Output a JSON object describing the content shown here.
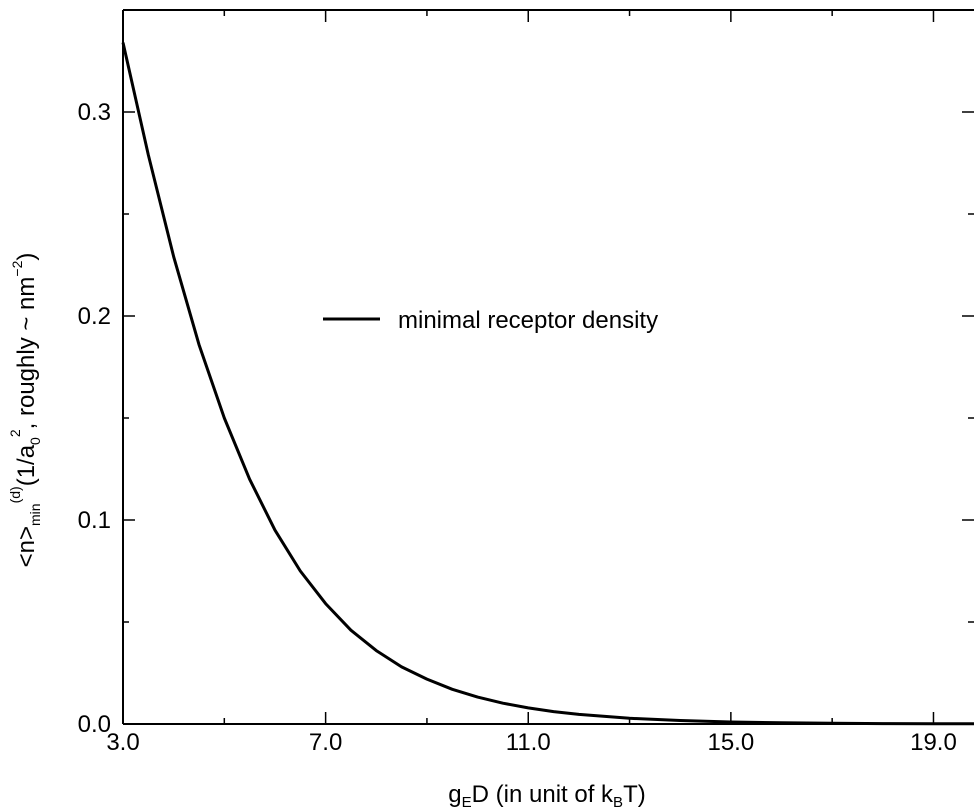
{
  "chart_data": {
    "type": "line",
    "xlabel": {
      "base": "g",
      "sub1": "E",
      "mid": "D (in unit of k",
      "sub2": "B",
      "tail": "T)"
    },
    "ylabel": {
      "p1": "<n>",
      "sub_min": "min",
      "sup_d": "(d)",
      "p2": "(1/a",
      "sub_0": "0",
      "sup_2": "2",
      "p3": ", roughly ~ nm",
      "sup_neg2": "−2",
      "p4": ")"
    },
    "xlim": [
      3.0,
      19.8
    ],
    "ylim": [
      0.0,
      0.35
    ],
    "x_ticks": [
      3.0,
      7.0,
      11.0,
      15.0,
      19.0
    ],
    "x_tick_labels": [
      "3.0",
      "7.0",
      "11.0",
      "15.0",
      "19.0"
    ],
    "y_ticks": [
      0.0,
      0.1,
      0.2,
      0.3
    ],
    "y_tick_labels": [
      "0.0",
      "0.1",
      "0.2",
      "0.3"
    ],
    "legend_position": "center",
    "series": [
      {
        "name": "minimal receptor density",
        "color": "#000000",
        "x": [
          3.0,
          3.5,
          4.0,
          4.5,
          5.0,
          5.5,
          6.0,
          6.5,
          7.0,
          7.5,
          8.0,
          8.5,
          9.0,
          9.5,
          10.0,
          10.5,
          11.0,
          11.5,
          12.0,
          13.0,
          14.0,
          15.0,
          16.0,
          17.0,
          18.0,
          19.0,
          19.8
        ],
        "y": [
          0.334,
          0.279,
          0.229,
          0.186,
          0.15,
          0.12,
          0.095,
          0.075,
          0.059,
          0.046,
          0.036,
          0.028,
          0.022,
          0.017,
          0.0132,
          0.0102,
          0.0079,
          0.0061,
          0.0047,
          0.0028,
          0.0017,
          0.001,
          0.0006,
          0.0004,
          0.0002,
          0.0001,
          0.0001
        ]
      }
    ]
  }
}
